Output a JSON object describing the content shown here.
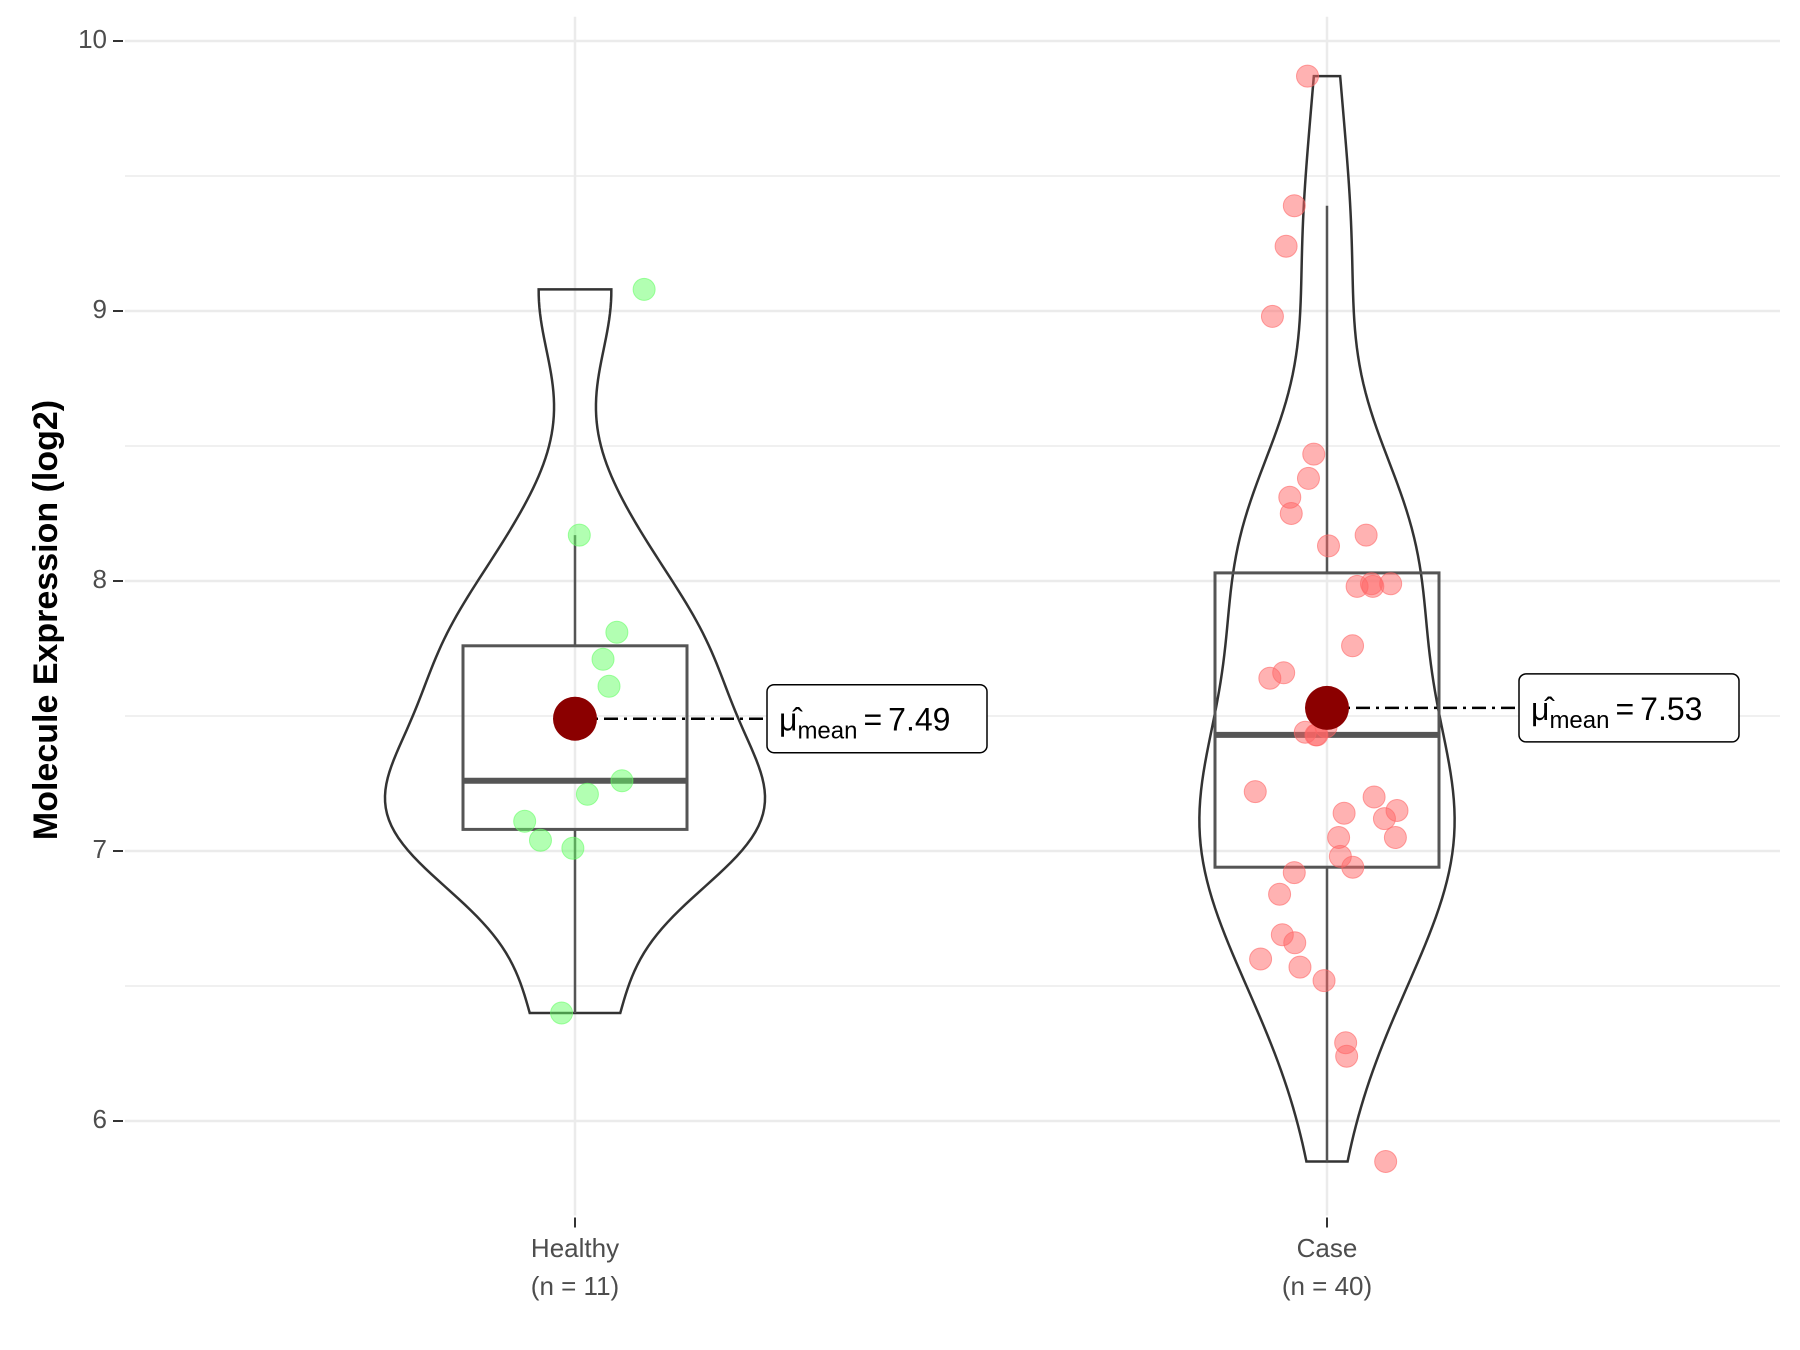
{
  "chart_data": {
    "type": "violin",
    "y_label": "Molecule Expression (log2)",
    "ylim": [
      5.65,
      10.09
    ],
    "yticks": [
      6,
      7,
      8,
      9,
      10
    ],
    "grid": true,
    "categories": [
      "Healthy",
      "Case"
    ],
    "n_labels": [
      "(n = 11)",
      "(n = 40)"
    ],
    "mean_color": "#8b0000",
    "mean_symbol": "μ̂",
    "mean_subscript": "mean",
    "mean_equals": "=",
    "groups": [
      {
        "name": "Healthy",
        "color": "#66ff66",
        "values": [
          9.08,
          8.17,
          7.81,
          7.71,
          7.61,
          7.26,
          7.21,
          7.11,
          7.04,
          7.01,
          6.4
        ],
        "box": {
          "whisker_low": 6.4,
          "q1": 7.08,
          "median": 7.26,
          "q3": 7.76,
          "whisker_high": 8.17
        },
        "mean": 7.49
      },
      {
        "name": "Case",
        "color": "#ff6666",
        "values": [
          9.87,
          9.39,
          9.24,
          8.98,
          8.47,
          8.38,
          8.31,
          8.25,
          8.17,
          8.13,
          7.99,
          7.98,
          7.98,
          7.99,
          7.76,
          7.66,
          7.64,
          7.46,
          7.44,
          7.43,
          7.43,
          7.22,
          7.2,
          7.15,
          7.14,
          7.12,
          7.05,
          7.05,
          6.98,
          6.94,
          6.92,
          6.84,
          6.69,
          6.66,
          6.6,
          6.57,
          6.52,
          6.29,
          6.24,
          5.85
        ],
        "box": {
          "whisker_low": 5.85,
          "q1": 6.94,
          "median": 7.43,
          "q3": 8.03,
          "whisker_high": 9.39
        },
        "mean": 7.53
      }
    ]
  }
}
